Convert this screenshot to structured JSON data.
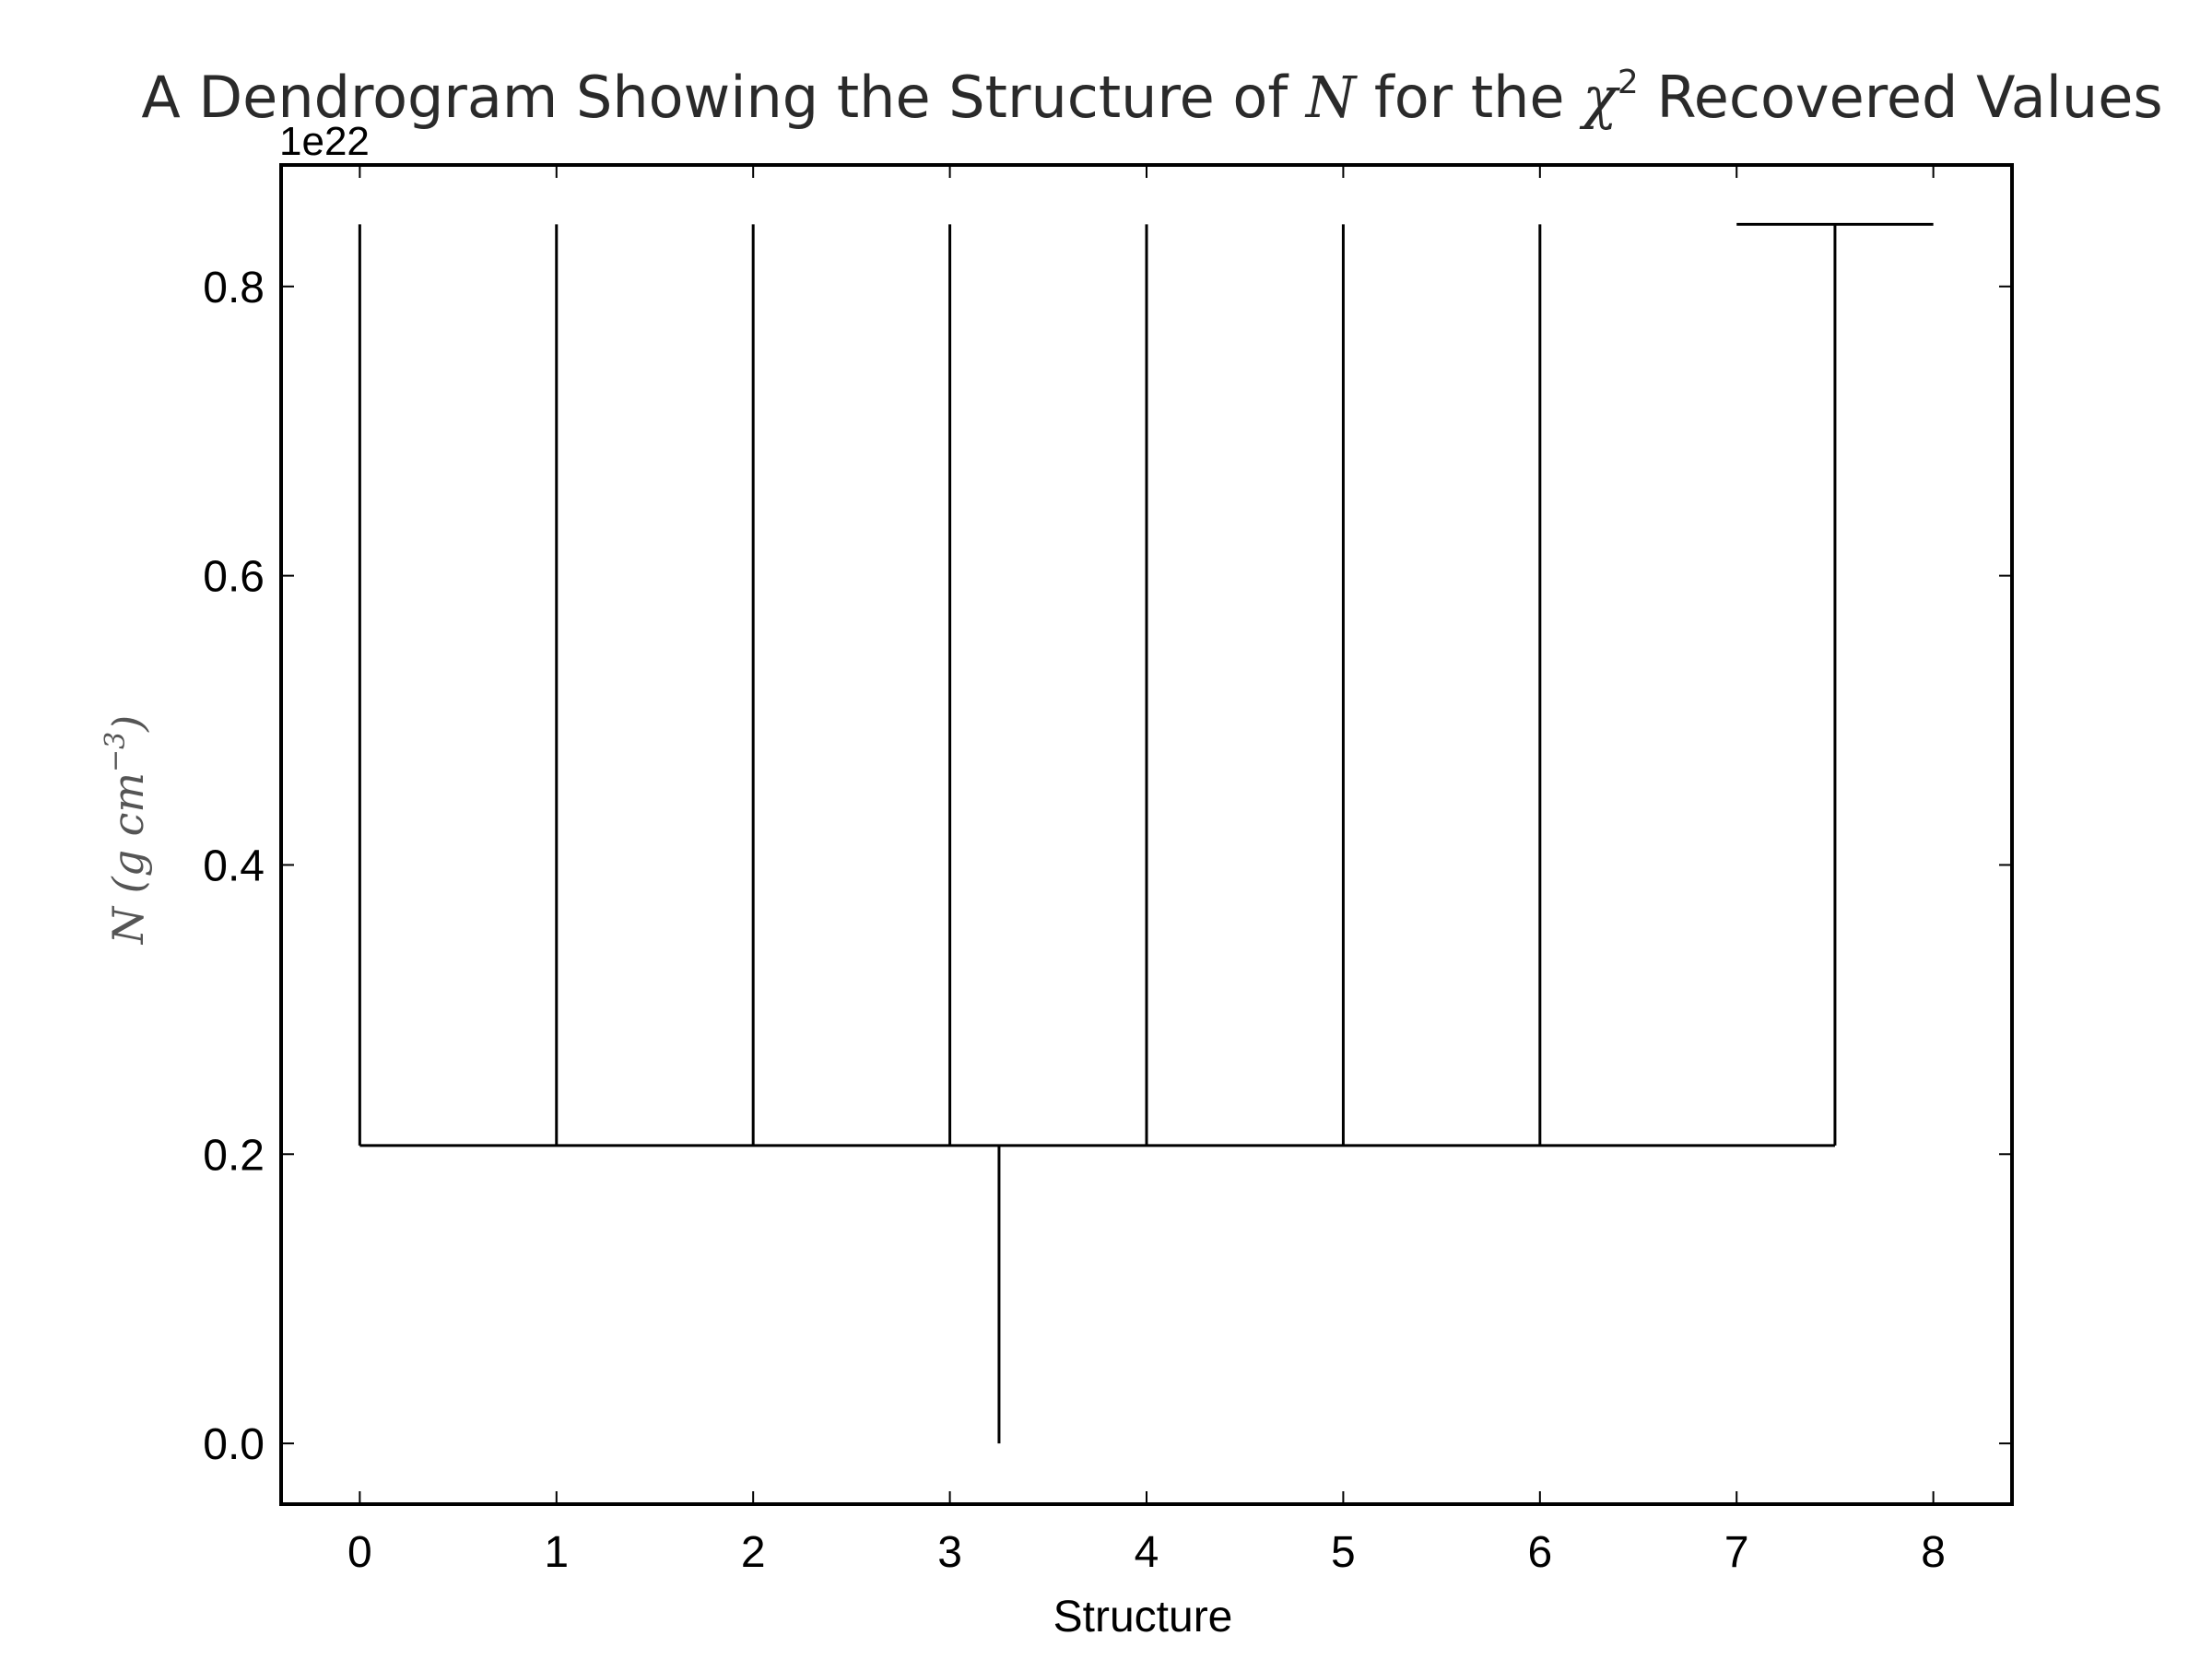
{
  "chart_data": {
    "type": "dendrogram",
    "title": {
      "prefix": "A Dendrogram Showing the Structure of ",
      "math_var": "N",
      "middle": " for the ",
      "math_chi": "χ",
      "superscript": "2",
      "suffix": " Recovered Values"
    },
    "xlabel": "Structure",
    "ylabel": {
      "main": "N (g cm",
      "superscript": "−3",
      "close": ")"
    },
    "y_offset_text": "1e22",
    "xlim": [
      -0.4,
      8.4
    ],
    "ylim": [
      -0.042,
      0.884
    ],
    "x_ticks": [
      0,
      1,
      2,
      3,
      4,
      5,
      6,
      7,
      8
    ],
    "x_tick_labels": [
      "0",
      "1",
      "2",
      "3",
      "4",
      "5",
      "6",
      "7",
      "8"
    ],
    "y_ticks": [
      0.0,
      0.2,
      0.4,
      0.6,
      0.8
    ],
    "y_tick_labels": [
      "0.0",
      "0.2",
      "0.4",
      "0.6",
      "0.8"
    ],
    "trunk": {
      "x": 3.25,
      "y_bottom": 0.0,
      "y_top": 0.206
    },
    "merge_level": 0.206,
    "leaf_top": 0.843,
    "leaves": [
      {
        "x": 0
      },
      {
        "x": 1
      },
      {
        "x": 2
      },
      {
        "x": 3
      },
      {
        "x": 4
      },
      {
        "x": 5
      },
      {
        "x": 6
      },
      {
        "x": 7.5
      }
    ],
    "cap": {
      "x_start": 7,
      "x_end": 8,
      "y": 0.843
    },
    "grid": false,
    "colors": {
      "line": "#000000",
      "title": "#2a2a2a",
      "ylabel": "#555555"
    }
  }
}
